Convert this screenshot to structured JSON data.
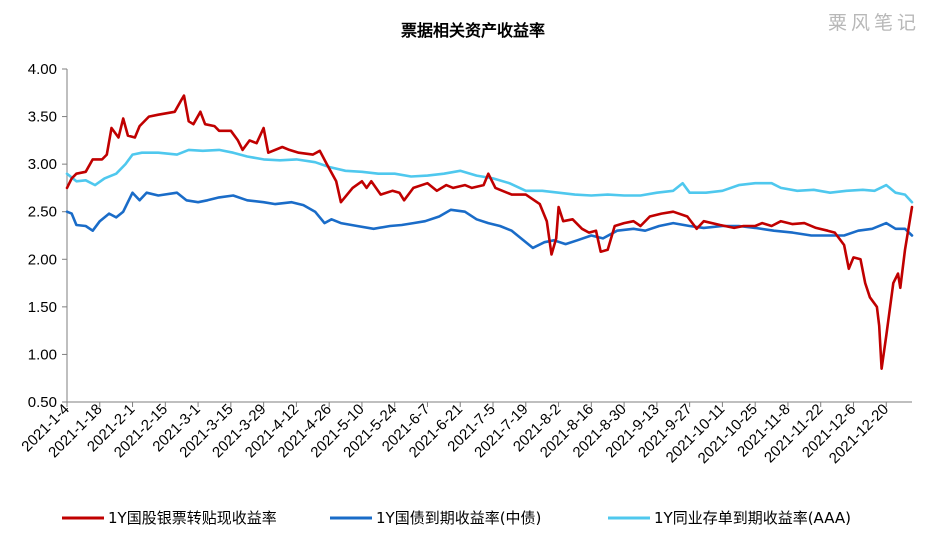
{
  "watermark": "粟风笔记",
  "chart_data": {
    "type": "line",
    "title": "票据相关资产收益率",
    "xlabel": "",
    "ylabel": "",
    "ylim": [
      0.5,
      4.0
    ],
    "yticks": [
      "4.00",
      "3.50",
      "3.00",
      "2.50",
      "2.00",
      "1.50",
      "1.00",
      "0.50"
    ],
    "xticks": [
      "2021-1-4",
      "2021-1-18",
      "2021-2-1",
      "2021-2-15",
      "2021-3-1",
      "2021-3-15",
      "2021-3-29",
      "2021-4-12",
      "2021-4-26",
      "2021-5-10",
      "2021-5-24",
      "2021-6-7",
      "2021-6-21",
      "2021-7-5",
      "2021-7-19",
      "2021-8-2",
      "2021-8-16",
      "2021-8-30",
      "2021-9-13",
      "2021-9-27",
      "2021-10-11",
      "2021-10-25",
      "2021-11-8",
      "2021-11-22",
      "2021-12-6",
      "2021-12-20"
    ],
    "x_range": [
      "2021-1-4",
      "2021-12-31"
    ],
    "grid": false,
    "legend_position": "bottom",
    "series": [
      {
        "name": "1Y国股银票转贴现收益率",
        "color": "#c00000",
        "points": [
          [
            "2021-1-4",
            2.75
          ],
          [
            "2021-1-6",
            2.85
          ],
          [
            "2021-1-8",
            2.9
          ],
          [
            "2021-1-12",
            2.92
          ],
          [
            "2021-1-15",
            3.05
          ],
          [
            "2021-1-19",
            3.05
          ],
          [
            "2021-1-21",
            3.1
          ],
          [
            "2021-1-23",
            3.38
          ],
          [
            "2021-1-26",
            3.28
          ],
          [
            "2021-1-28",
            3.48
          ],
          [
            "2021-1-30",
            3.3
          ],
          [
            "2021-2-2",
            3.28
          ],
          [
            "2021-2-4",
            3.4
          ],
          [
            "2021-2-8",
            3.5
          ],
          [
            "2021-2-12",
            3.52
          ],
          [
            "2021-2-19",
            3.55
          ],
          [
            "2021-2-22",
            3.68
          ],
          [
            "2021-2-23",
            3.72
          ],
          [
            "2021-2-25",
            3.45
          ],
          [
            "2021-2-27",
            3.42
          ],
          [
            "2021-3-2",
            3.55
          ],
          [
            "2021-3-4",
            3.42
          ],
          [
            "2021-3-8",
            3.4
          ],
          [
            "2021-3-10",
            3.35
          ],
          [
            "2021-3-15",
            3.35
          ],
          [
            "2021-3-18",
            3.25
          ],
          [
            "2021-3-20",
            3.15
          ],
          [
            "2021-3-23",
            3.25
          ],
          [
            "2021-3-26",
            3.22
          ],
          [
            "2021-3-29",
            3.38
          ],
          [
            "2021-3-31",
            3.12
          ],
          [
            "2021-4-6",
            3.18
          ],
          [
            "2021-4-9",
            3.15
          ],
          [
            "2021-4-13",
            3.12
          ],
          [
            "2021-4-19",
            3.1
          ],
          [
            "2021-4-22",
            3.14
          ],
          [
            "2021-4-25",
            3.0
          ],
          [
            "2021-4-29",
            2.82
          ],
          [
            "2021-5-1",
            2.6
          ],
          [
            "2021-5-6",
            2.75
          ],
          [
            "2021-5-10",
            2.82
          ],
          [
            "2021-5-12",
            2.75
          ],
          [
            "2021-5-14",
            2.82
          ],
          [
            "2021-5-18",
            2.68
          ],
          [
            "2021-5-23",
            2.72
          ],
          [
            "2021-5-26",
            2.7
          ],
          [
            "2021-5-28",
            2.62
          ],
          [
            "2021-6-1",
            2.75
          ],
          [
            "2021-6-7",
            2.8
          ],
          [
            "2021-6-11",
            2.72
          ],
          [
            "2021-6-15",
            2.78
          ],
          [
            "2021-6-18",
            2.75
          ],
          [
            "2021-6-23",
            2.78
          ],
          [
            "2021-6-26",
            2.75
          ],
          [
            "2021-7-1",
            2.78
          ],
          [
            "2021-7-3",
            2.9
          ],
          [
            "2021-7-6",
            2.75
          ],
          [
            "2021-7-9",
            2.72
          ],
          [
            "2021-7-13",
            2.68
          ],
          [
            "2021-7-19",
            2.68
          ],
          [
            "2021-7-25",
            2.58
          ],
          [
            "2021-7-28",
            2.4
          ],
          [
            "2021-7-30",
            2.05
          ],
          [
            "2021-8-1",
            2.22
          ],
          [
            "2021-8-2",
            2.55
          ],
          [
            "2021-8-4",
            2.4
          ],
          [
            "2021-8-8",
            2.42
          ],
          [
            "2021-8-12",
            2.32
          ],
          [
            "2021-8-15",
            2.28
          ],
          [
            "2021-8-18",
            2.3
          ],
          [
            "2021-8-20",
            2.08
          ],
          [
            "2021-8-23",
            2.1
          ],
          [
            "2021-8-26",
            2.35
          ],
          [
            "2021-8-30",
            2.38
          ],
          [
            "2021-9-3",
            2.4
          ],
          [
            "2021-9-6",
            2.35
          ],
          [
            "2021-9-10",
            2.45
          ],
          [
            "2021-9-15",
            2.48
          ],
          [
            "2021-9-20",
            2.5
          ],
          [
            "2021-9-26",
            2.45
          ],
          [
            "2021-9-30",
            2.32
          ],
          [
            "2021-10-3",
            2.4
          ],
          [
            "2021-10-10",
            2.36
          ],
          [
            "2021-10-16",
            2.33
          ],
          [
            "2021-10-20",
            2.35
          ],
          [
            "2021-10-25",
            2.35
          ],
          [
            "2021-10-28",
            2.38
          ],
          [
            "2021-11-1",
            2.35
          ],
          [
            "2021-11-5",
            2.4
          ],
          [
            "2021-11-10",
            2.37
          ],
          [
            "2021-11-15",
            2.38
          ],
          [
            "2021-11-20",
            2.33
          ],
          [
            "2021-11-25",
            2.3
          ],
          [
            "2021-11-28",
            2.28
          ],
          [
            "2021-12-2",
            2.15
          ],
          [
            "2021-12-4",
            1.9
          ],
          [
            "2021-12-6",
            2.02
          ],
          [
            "2021-12-9",
            2.0
          ],
          [
            "2021-12-11",
            1.75
          ],
          [
            "2021-12-13",
            1.6
          ],
          [
            "2021-12-16",
            1.5
          ],
          [
            "2021-12-17",
            1.3
          ],
          [
            "2021-12-18",
            0.85
          ],
          [
            "2021-12-20",
            1.2
          ],
          [
            "2021-12-23",
            1.75
          ],
          [
            "2021-12-25",
            1.85
          ],
          [
            "2021-12-26",
            1.7
          ],
          [
            "2021-12-28",
            2.1
          ],
          [
            "2021-12-31",
            2.55
          ]
        ]
      },
      {
        "name": "1Y国债到期收益率(中债)",
        "color": "#1a6cc8",
        "points": [
          [
            "2021-1-4",
            2.5
          ],
          [
            "2021-1-6",
            2.48
          ],
          [
            "2021-1-8",
            2.36
          ],
          [
            "2021-1-12",
            2.35
          ],
          [
            "2021-1-15",
            2.3
          ],
          [
            "2021-1-18",
            2.4
          ],
          [
            "2021-1-22",
            2.48
          ],
          [
            "2021-1-25",
            2.44
          ],
          [
            "2021-1-28",
            2.5
          ],
          [
            "2021-2-1",
            2.7
          ],
          [
            "2021-2-4",
            2.62
          ],
          [
            "2021-2-7",
            2.7
          ],
          [
            "2021-2-12",
            2.67
          ],
          [
            "2021-2-20",
            2.7
          ],
          [
            "2021-2-24",
            2.62
          ],
          [
            "2021-3-1",
            2.6
          ],
          [
            "2021-3-5",
            2.62
          ],
          [
            "2021-3-10",
            2.65
          ],
          [
            "2021-3-16",
            2.67
          ],
          [
            "2021-3-22",
            2.62
          ],
          [
            "2021-3-29",
            2.6
          ],
          [
            "2021-4-3",
            2.58
          ],
          [
            "2021-4-10",
            2.6
          ],
          [
            "2021-4-15",
            2.57
          ],
          [
            "2021-4-20",
            2.5
          ],
          [
            "2021-4-24",
            2.38
          ],
          [
            "2021-4-27",
            2.42
          ],
          [
            "2021-5-1",
            2.38
          ],
          [
            "2021-5-8",
            2.35
          ],
          [
            "2021-5-15",
            2.32
          ],
          [
            "2021-5-22",
            2.35
          ],
          [
            "2021-5-27",
            2.36
          ],
          [
            "2021-6-1",
            2.38
          ],
          [
            "2021-6-6",
            2.4
          ],
          [
            "2021-6-12",
            2.45
          ],
          [
            "2021-6-17",
            2.52
          ],
          [
            "2021-6-23",
            2.5
          ],
          [
            "2021-6-28",
            2.42
          ],
          [
            "2021-7-3",
            2.38
          ],
          [
            "2021-7-8",
            2.35
          ],
          [
            "2021-7-13",
            2.3
          ],
          [
            "2021-7-18",
            2.2
          ],
          [
            "2021-7-22",
            2.12
          ],
          [
            "2021-7-27",
            2.18
          ],
          [
            "2021-7-31",
            2.2
          ],
          [
            "2021-8-5",
            2.16
          ],
          [
            "2021-8-10",
            2.2
          ],
          [
            "2021-8-16",
            2.25
          ],
          [
            "2021-8-21",
            2.22
          ],
          [
            "2021-8-27",
            2.3
          ],
          [
            "2021-9-3",
            2.32
          ],
          [
            "2021-9-8",
            2.3
          ],
          [
            "2021-9-14",
            2.35
          ],
          [
            "2021-9-20",
            2.38
          ],
          [
            "2021-9-27",
            2.35
          ],
          [
            "2021-10-3",
            2.33
          ],
          [
            "2021-10-11",
            2.35
          ],
          [
            "2021-10-18",
            2.35
          ],
          [
            "2021-10-25",
            2.33
          ],
          [
            "2021-11-2",
            2.3
          ],
          [
            "2021-11-10",
            2.28
          ],
          [
            "2021-11-18",
            2.25
          ],
          [
            "2021-11-25",
            2.25
          ],
          [
            "2021-12-2",
            2.25
          ],
          [
            "2021-12-8",
            2.3
          ],
          [
            "2021-12-14",
            2.32
          ],
          [
            "2021-12-20",
            2.38
          ],
          [
            "2021-12-24",
            2.32
          ],
          [
            "2021-12-28",
            2.32
          ],
          [
            "2021-12-31",
            2.25
          ]
        ]
      },
      {
        "name": "1Y同业存单到期收益率(AAA)",
        "color": "#4fc8ee",
        "points": [
          [
            "2021-1-4",
            2.9
          ],
          [
            "2021-1-8",
            2.82
          ],
          [
            "2021-1-12",
            2.83
          ],
          [
            "2021-1-16",
            2.78
          ],
          [
            "2021-1-20",
            2.85
          ],
          [
            "2021-1-25",
            2.9
          ],
          [
            "2021-1-29",
            3.0
          ],
          [
            "2021-2-1",
            3.1
          ],
          [
            "2021-2-5",
            3.12
          ],
          [
            "2021-2-12",
            3.12
          ],
          [
            "2021-2-20",
            3.1
          ],
          [
            "2021-2-25",
            3.15
          ],
          [
            "2021-3-3",
            3.14
          ],
          [
            "2021-3-10",
            3.15
          ],
          [
            "2021-3-16",
            3.12
          ],
          [
            "2021-3-22",
            3.08
          ],
          [
            "2021-3-29",
            3.05
          ],
          [
            "2021-4-5",
            3.04
          ],
          [
            "2021-4-12",
            3.05
          ],
          [
            "2021-4-20",
            3.02
          ],
          [
            "2021-4-26",
            2.97
          ],
          [
            "2021-5-3",
            2.93
          ],
          [
            "2021-5-10",
            2.92
          ],
          [
            "2021-5-17",
            2.9
          ],
          [
            "2021-5-24",
            2.9
          ],
          [
            "2021-5-31",
            2.87
          ],
          [
            "2021-6-7",
            2.88
          ],
          [
            "2021-6-14",
            2.9
          ],
          [
            "2021-6-21",
            2.93
          ],
          [
            "2021-6-28",
            2.88
          ],
          [
            "2021-7-5",
            2.85
          ],
          [
            "2021-7-12",
            2.8
          ],
          [
            "2021-7-19",
            2.72
          ],
          [
            "2021-7-26",
            2.72
          ],
          [
            "2021-8-2",
            2.7
          ],
          [
            "2021-8-9",
            2.68
          ],
          [
            "2021-8-16",
            2.67
          ],
          [
            "2021-8-23",
            2.68
          ],
          [
            "2021-8-30",
            2.67
          ],
          [
            "2021-9-6",
            2.67
          ],
          [
            "2021-9-13",
            2.7
          ],
          [
            "2021-9-20",
            2.72
          ],
          [
            "2021-9-24",
            2.8
          ],
          [
            "2021-9-27",
            2.7
          ],
          [
            "2021-10-4",
            2.7
          ],
          [
            "2021-10-11",
            2.72
          ],
          [
            "2021-10-18",
            2.78
          ],
          [
            "2021-10-25",
            2.8
          ],
          [
            "2021-11-1",
            2.8
          ],
          [
            "2021-11-5",
            2.75
          ],
          [
            "2021-11-12",
            2.72
          ],
          [
            "2021-11-19",
            2.73
          ],
          [
            "2021-11-26",
            2.7
          ],
          [
            "2021-12-3",
            2.72
          ],
          [
            "2021-12-10",
            2.73
          ],
          [
            "2021-12-15",
            2.72
          ],
          [
            "2021-12-20",
            2.78
          ],
          [
            "2021-12-24",
            2.7
          ],
          [
            "2021-12-28",
            2.68
          ],
          [
            "2021-12-31",
            2.6
          ]
        ]
      }
    ]
  }
}
